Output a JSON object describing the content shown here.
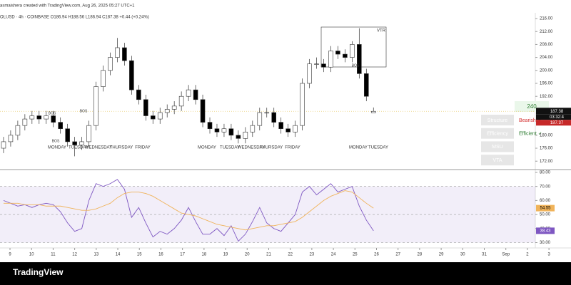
{
  "header": {
    "credit": "asmaishera created with TradingView.com, Aug 26, 2025 05:27 UTC+1",
    "legend": "OLUSD · 4h · COINBASE  O186.94 H188.56 L186.94 C187.38 +0.44 (+0.24%)"
  },
  "chart_data": [
    {
      "type": "candlestick",
      "up_color": "#ffffff",
      "down_color": "#000000",
      "x": [
        8.7,
        9.03,
        9.36,
        9.69,
        10.02,
        10.35,
        10.68,
        11.01,
        11.34,
        11.67,
        12.0,
        12.33,
        12.66,
        12.99,
        13.32,
        13.65,
        13.98,
        14.31,
        14.64,
        14.97,
        15.3,
        15.63,
        15.96,
        16.29,
        16.62,
        16.95,
        17.28,
        17.61,
        17.94,
        18.27,
        18.6,
        18.93,
        19.26,
        19.59,
        19.92,
        20.25,
        20.58,
        20.91,
        21.24,
        21.57,
        21.9,
        22.23,
        22.56,
        22.89,
        23.22,
        23.55,
        23.88,
        24.21,
        24.54,
        24.87,
        25.2,
        25.53,
        25.86
      ],
      "open": [
        176,
        178,
        180,
        183,
        185,
        186,
        185,
        186,
        184,
        182,
        178,
        177,
        178,
        183,
        195,
        200,
        204,
        207,
        203,
        194,
        191,
        186,
        185,
        187,
        188,
        189,
        192,
        194,
        191,
        184,
        182,
        181,
        182,
        180,
        179,
        181,
        183,
        187,
        187,
        184,
        182,
        181,
        183,
        196,
        202,
        202,
        201,
        206,
        205,
        204,
        208,
        199,
        186.94
      ],
      "high": [
        179.5,
        181.5,
        184.5,
        186.5,
        187.5,
        187.5,
        187.5,
        187.5,
        185.5,
        183.5,
        179.5,
        179.5,
        184.5,
        196.5,
        201.5,
        205.5,
        210,
        208.5,
        204.5,
        195.5,
        192.5,
        187.5,
        188.5,
        189.5,
        190.5,
        193.5,
        195.5,
        195.5,
        192.5,
        185.5,
        183.5,
        183.5,
        183.5,
        181.5,
        182.5,
        184.5,
        188.5,
        188.5,
        188.5,
        185.5,
        183.5,
        184.5,
        197.5,
        203.5,
        204,
        203.5,
        207.5,
        207.5,
        206.5,
        209,
        213,
        200.5,
        188.56
      ],
      "low": [
        174.5,
        176.5,
        178.5,
        181.5,
        183.5,
        183.5,
        183.5,
        182.5,
        180.5,
        176.5,
        173.5,
        175.5,
        176.5,
        181.5,
        193.5,
        198.5,
        202.5,
        201.5,
        192.5,
        189.5,
        184.5,
        183.5,
        183.5,
        185.5,
        186.5,
        187.5,
        190.5,
        189.5,
        182.5,
        180.5,
        179.5,
        179.5,
        178.5,
        177.5,
        177.5,
        179.5,
        181.5,
        185.5,
        182.5,
        180.5,
        179.5,
        179.5,
        181.5,
        194.5,
        200.5,
        199.5,
        199.5,
        203.5,
        202.5,
        202.5,
        197.5,
        190.5,
        186.94
      ],
      "close": [
        178,
        180,
        183,
        185,
        186,
        185,
        186,
        184,
        182,
        178,
        177,
        178,
        183,
        195,
        200,
        204,
        207,
        203,
        194,
        191,
        186,
        185,
        187,
        188,
        189,
        192,
        194,
        191,
        184,
        182,
        181,
        182,
        180,
        179,
        181,
        183,
        187,
        187,
        184,
        182,
        181,
        183,
        196,
        202,
        202,
        201,
        206,
        205,
        204,
        208,
        199,
        192,
        187.38
      ],
      "xlim": [
        8.536,
        34.36
      ],
      "ylim": [
        169.63,
        217.76
      ],
      "yticks": [
        {
          "value": 216,
          "label": "216.00"
        },
        {
          "value": 212,
          "label": "212.00"
        },
        {
          "value": 208,
          "label": "208.00"
        },
        {
          "value": 204,
          "label": "204.00"
        },
        {
          "value": 200,
          "label": "200.00"
        },
        {
          "value": 196,
          "label": "196.00"
        },
        {
          "value": 192,
          "label": "192.00"
        },
        {
          "value": 180,
          "label": "180.00"
        },
        {
          "value": 176,
          "label": "176.00"
        },
        {
          "value": 172,
          "label": "172.00"
        }
      ],
      "last_price": 187.38,
      "countdown": "03:32:4",
      "prev_price_label": "187.37",
      "day_labels": [
        "MONDAY",
        "TUESDAY",
        "WEDNESDAY",
        "THURSDAY",
        "FRIDAY",
        "MONDAY",
        "TUESDAY",
        "WEDNESDAY",
        "THURSDAY",
        "FRIDAY",
        "MONDAY",
        "TUESDAY"
      ],
      "structure_labels": [
        "BOS",
        "BOS",
        "BOS",
        "BOS"
      ],
      "box_label": "VTR"
    },
    {
      "type": "line",
      "xlim": [
        8.536,
        34.36
      ],
      "ylim": [
        27.2,
        81
      ],
      "band": [
        30,
        70
      ],
      "x": [
        8.7,
        9.03,
        9.36,
        9.69,
        10.02,
        10.35,
        10.68,
        11.01,
        11.34,
        11.67,
        12.0,
        12.33,
        12.66,
        12.99,
        13.32,
        13.65,
        13.98,
        14.31,
        14.64,
        14.97,
        15.3,
        15.63,
        15.96,
        16.29,
        16.62,
        16.95,
        17.28,
        17.61,
        17.94,
        18.27,
        18.6,
        18.93,
        19.26,
        19.59,
        19.92,
        20.25,
        20.58,
        20.91,
        21.24,
        21.57,
        21.9,
        22.23,
        22.56,
        22.89,
        23.22,
        23.55,
        23.88,
        24.21,
        24.54,
        24.87,
        25.2,
        25.53,
        25.86
      ],
      "series": [
        {
          "color": "#7e57c2",
          "values": [
            60,
            58,
            56,
            57,
            55,
            57,
            58,
            57,
            52,
            44,
            38,
            40,
            60,
            72,
            70,
            72,
            75,
            68,
            48,
            55,
            44,
            34,
            38,
            36,
            40,
            46,
            55,
            45,
            36,
            36,
            40,
            35,
            42,
            31,
            36,
            45,
            55,
            44,
            40,
            38,
            44,
            50,
            66,
            70,
            64,
            68,
            72,
            66,
            68,
            70,
            56,
            46,
            38.43
          ]
        },
        {
          "color": "#f0b35a",
          "values": [
            58,
            58,
            58,
            57,
            57,
            57,
            56,
            56,
            56,
            55,
            54,
            53,
            53,
            54,
            56,
            58,
            62,
            65,
            66,
            66,
            65,
            63,
            60,
            57,
            54,
            51,
            50,
            49,
            47,
            45,
            43,
            42,
            41,
            40,
            39,
            40,
            41,
            42,
            42,
            43,
            44,
            45,
            48,
            52,
            56,
            60,
            63,
            65,
            67,
            66,
            62,
            58,
            54.55
          ]
        }
      ],
      "yticks": [
        {
          "value": 80,
          "label": "80.00"
        },
        {
          "value": 70,
          "label": "70.00"
        },
        {
          "value": 60,
          "label": "60.00"
        },
        {
          "value": 50,
          "label": "50.00"
        },
        {
          "value": 40,
          "label": "40.00"
        },
        {
          "value": 30,
          "label": "30.00"
        }
      ],
      "xticks": [
        9,
        10,
        11,
        12,
        13,
        14,
        15,
        16,
        17,
        18,
        19,
        20,
        21,
        22,
        23,
        24,
        25,
        26,
        27,
        28,
        29,
        30,
        31,
        {
          "value": 32,
          "label": "Sep"
        },
        {
          "value": 33,
          "label": "2"
        },
        {
          "value": 34,
          "label": "3"
        }
      ]
    }
  ],
  "panel": {
    "timeframe": "240",
    "rows": [
      {
        "label": "Structure",
        "value": "Bearish ▼"
      },
      {
        "label": "Efficiency",
        "value": "Efficient ✓"
      },
      {
        "label": "MSU"
      },
      {
        "label": "VTA"
      }
    ]
  },
  "footer": {
    "brand": "TradingView"
  }
}
